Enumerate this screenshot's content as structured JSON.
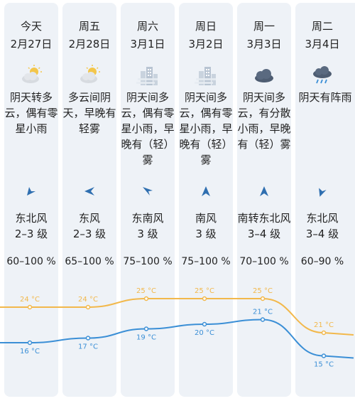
{
  "days": [
    {
      "day": "今天",
      "date": "2月27日",
      "desc": [
        "阴天转多",
        "云，偶有零",
        "星小雨"
      ],
      "icon": "partly-cloudy-sun-icon",
      "wind_dir": "东北风",
      "wind_level": "2–3 级",
      "humidity": "60–100 %",
      "high": "24 °C",
      "low": "16 °C",
      "high_val": 24,
      "low_val": 16
    },
    {
      "day": "周五",
      "date": "2月28日",
      "desc": [
        "多云间阴",
        "天，早晚有",
        "轻雾"
      ],
      "icon": "partly-cloudy-sun-icon",
      "wind_dir": "东风",
      "wind_level": "2–3 级",
      "humidity": "65–100 %",
      "high": "24 °C",
      "low": "17 °C",
      "high_val": 24,
      "low_val": 17
    },
    {
      "day": "周六",
      "date": "3月1日",
      "desc": [
        "阴天间多",
        "云，偶有零",
        "星小雨，早",
        "晚有（轻）",
        "雾"
      ],
      "icon": "fog-city-icon",
      "wind_dir": "东南风",
      "wind_level": "3 级",
      "humidity": "75–100 %",
      "high": "25 °C",
      "low": "19 °C",
      "high_val": 25,
      "low_val": 19
    },
    {
      "day": "周日",
      "date": "3月2日",
      "desc": [
        "阴天间多",
        "云，偶有零",
        "星小雨，早",
        "晚有（轻）",
        "雾"
      ],
      "icon": "fog-city-icon",
      "wind_dir": "南风",
      "wind_level": "3 级",
      "humidity": "75–100 %",
      "high": "25 °C",
      "low": "20 °C",
      "high_val": 25,
      "low_val": 20
    },
    {
      "day": "周一",
      "date": "3月3日",
      "desc": [
        "阴天间多",
        "云，有分散",
        "小雨，早晚",
        "有（轻）雾"
      ],
      "icon": "dark-cloud-icon",
      "wind_dir": "南转东北风",
      "wind_level": "3–4 级",
      "humidity": "70–100 %",
      "high": "25 °C",
      "low": "21 °C",
      "high_val": 25,
      "low_val": 21
    },
    {
      "day": "周二",
      "date": "3月4日",
      "desc": [
        "阴天有阵雨"
      ],
      "icon": "rain-cloud-icon",
      "wind_dir": "东北风",
      "wind_level": "3–4 级",
      "humidity": "60–90 %",
      "high": "21 °C",
      "low": "15 °C",
      "high_val": 21,
      "low_val": 15
    }
  ],
  "colors": {
    "high_line": "#f2b84b",
    "low_line": "#3b8fd6",
    "wind_arrow": "#2f6fb0"
  },
  "chart_data": {
    "type": "line",
    "x": [
      "2月27日",
      "2月28日",
      "3月1日",
      "3月2日",
      "3月3日",
      "3月4日"
    ],
    "series": [
      {
        "values": [
          24,
          24,
          25,
          25,
          25,
          21
        ]
      },
      {
        "values": [
          16,
          17,
          19,
          20,
          21,
          15
        ]
      }
    ]
  }
}
